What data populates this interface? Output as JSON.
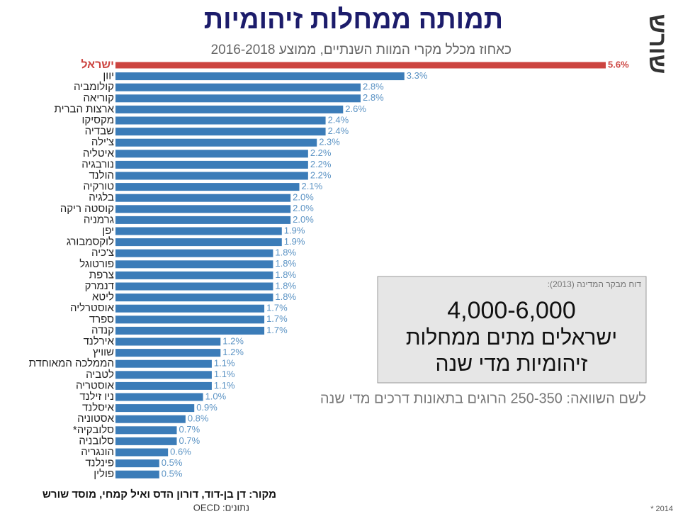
{
  "chart_data": {
    "type": "bar",
    "orientation": "horizontal",
    "title": "תמותה ממחלות זיהומיות",
    "subtitle": "כאחוז מכלל מקרי המוות השנתיים, ממוצע 2016-2018",
    "categories": [
      "ישראל",
      "יוון",
      "קולומביה",
      "קוריאה",
      "ארצות הברית",
      "מקסיקו",
      "שבדיה",
      "צ'ילה",
      "איטליה",
      "נורבגיה",
      "הולנד",
      "טורקיה",
      "בלגיה",
      "קוסטה ריקה",
      "גרמניה",
      "יפן",
      "לוקסמבורג",
      "צ'כיה",
      "פורטוגל",
      "צרפת",
      "דנמרק",
      "ליטא",
      "אוסטרליה",
      "ספרד",
      "קנדה",
      "אירלנד",
      "שוויץ",
      "הממלכה המאוחדת",
      "לטביה",
      "אוסטריה",
      "ניו זילנד",
      "איסלנד",
      "אסטוניה",
      "סלובקיה*",
      "סלובניה",
      "הונגריה",
      "פינלנד",
      "פולין"
    ],
    "values": [
      5.6,
      3.3,
      2.8,
      2.8,
      2.6,
      2.4,
      2.4,
      2.3,
      2.2,
      2.2,
      2.2,
      2.1,
      2.0,
      2.0,
      2.0,
      1.9,
      1.9,
      1.8,
      1.8,
      1.8,
      1.8,
      1.8,
      1.7,
      1.7,
      1.7,
      1.2,
      1.2,
      1.1,
      1.1,
      1.1,
      1.0,
      0.9,
      0.8,
      0.7,
      0.7,
      0.6,
      0.5,
      0.5
    ],
    "value_labels": [
      "5.6%",
      "3.3%",
      "2.8%",
      "2.8%",
      "2.6%",
      "2.4%",
      "2.4%",
      "2.3%",
      "2.2%",
      "2.2%",
      "2.2%",
      "2.1%",
      "2.0%",
      "2.0%",
      "2.0%",
      "1.9%",
      "1.9%",
      "1.8%",
      "1.8%",
      "1.8%",
      "1.8%",
      "1.8%",
      "1.7%",
      "1.7%",
      "1.7%",
      "1.2%",
      "1.2%",
      "1.1%",
      "1.1%",
      "1.1%",
      "1.0%",
      "0.9%",
      "0.8%",
      "0.7%",
      "0.7%",
      "0.6%",
      "0.5%",
      "0.5%"
    ],
    "color": "#3b7cb8",
    "colors": [
      "#cc4440",
      "#3b7cb8",
      "#3b7cb8",
      "#3b7cb8",
      "#3b7cb8",
      "#3b7cb8",
      "#3b7cb8",
      "#3b7cb8",
      "#3b7cb8",
      "#3b7cb8",
      "#3b7cb8",
      "#3b7cb8",
      "#3b7cb8",
      "#3b7cb8",
      "#3b7cb8",
      "#3b7cb8",
      "#3b7cb8",
      "#3b7cb8",
      "#3b7cb8",
      "#3b7cb8",
      "#3b7cb8",
      "#3b7cb8",
      "#3b7cb8",
      "#3b7cb8",
      "#3b7cb8",
      "#3b7cb8",
      "#3b7cb8",
      "#3b7cb8",
      "#3b7cb8",
      "#3b7cb8",
      "#3b7cb8",
      "#3b7cb8",
      "#3b7cb8",
      "#3b7cb8",
      "#3b7cb8",
      "#3b7cb8",
      "#3b7cb8",
      "#3b7cb8"
    ],
    "annotations": {
      "box_source": "דוח מבקר המדינה (2013):",
      "box_number": "4,000-6,000",
      "box_line1": "ישראלים מתים ממחלות",
      "box_line2": "זיהומיות מדי שנה",
      "comparison": "לשם השוואה: 250-350 הרוגים בתאונות דרכים מדי שנה",
      "source": "מקור:  דן בן-דוד, דורון הדס ואיל קמחי, מוסד שורש",
      "data_source": "נתונים: OECD",
      "footnote": "* 2014",
      "logo": "שורש"
    }
  }
}
